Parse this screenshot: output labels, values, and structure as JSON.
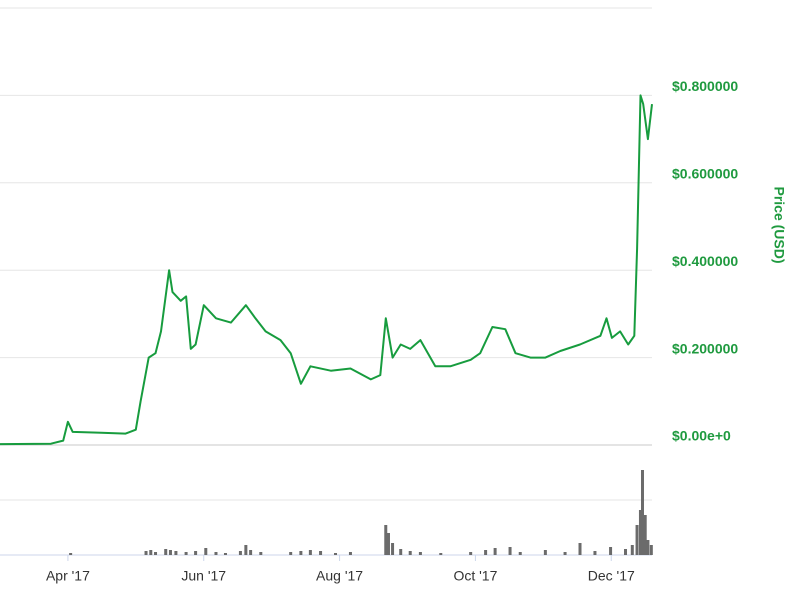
{
  "chart_data": {
    "type": "line",
    "y_axis_label": "Price (USD)",
    "color": "#179c3e",
    "x": [
      3.0,
      3.75,
      3.93,
      4.0,
      4.07,
      4.49,
      4.85,
      5.0,
      5.07,
      5.19,
      5.29,
      5.37,
      5.49,
      5.54,
      5.66,
      5.74,
      5.81,
      5.88,
      6.0,
      6.18,
      6.4,
      6.62,
      6.76,
      6.91,
      7.13,
      7.28,
      7.43,
      7.57,
      7.87,
      8.16,
      8.46,
      8.6,
      8.68,
      8.78,
      8.9,
      9.04,
      9.19,
      9.41,
      9.63,
      9.93,
      10.07,
      10.25,
      10.44,
      10.59,
      10.81,
      11.03,
      11.25,
      11.54,
      11.84,
      11.93,
      12.01,
      12.13,
      12.25,
      12.34,
      12.38,
      12.43,
      12.47,
      12.54,
      12.6
    ],
    "values": [
      0.002,
      0.003,
      0.01,
      0.053,
      0.03,
      0.028,
      0.026,
      0.035,
      0.1,
      0.2,
      0.21,
      0.26,
      0.4,
      0.35,
      0.33,
      0.34,
      0.22,
      0.23,
      0.32,
      0.29,
      0.28,
      0.32,
      0.29,
      0.26,
      0.24,
      0.21,
      0.14,
      0.18,
      0.17,
      0.175,
      0.15,
      0.16,
      0.29,
      0.2,
      0.23,
      0.22,
      0.24,
      0.18,
      0.18,
      0.195,
      0.21,
      0.27,
      0.265,
      0.21,
      0.2,
      0.2,
      0.215,
      0.23,
      0.25,
      0.29,
      0.245,
      0.26,
      0.23,
      0.25,
      0.45,
      0.8,
      0.78,
      0.7,
      0.78
    ],
    "xlim": [
      3.0,
      12.6
    ],
    "xticks": [
      {
        "value": 4,
        "label": "Apr '17"
      },
      {
        "value": 6,
        "label": "Jun '17"
      },
      {
        "value": 8,
        "label": "Aug '17"
      },
      {
        "value": 10,
        "label": "Oct '17"
      },
      {
        "value": 12,
        "label": "Dec '17"
      }
    ],
    "ylim": [
      0,
      1
    ],
    "yticks": [
      {
        "value": 0,
        "label": "$0.00e+0"
      },
      {
        "value": 0.2,
        "label": "$0.200000"
      },
      {
        "value": 0.4,
        "label": "$0.400000"
      },
      {
        "value": 0.6,
        "label": "$0.600000"
      },
      {
        "value": 0.8,
        "label": "$0.800000"
      }
    ],
    "grid": true,
    "volume": {
      "color": "#6b6b6b",
      "ylim": [
        0,
        100
      ],
      "x": [
        4.04,
        5.15,
        5.22,
        5.29,
        5.44,
        5.51,
        5.59,
        5.74,
        5.88,
        6.03,
        6.18,
        6.32,
        6.54,
        6.62,
        6.69,
        6.84,
        7.28,
        7.43,
        7.57,
        7.72,
        7.94,
        8.16,
        8.68,
        8.72,
        8.78,
        8.9,
        9.04,
        9.19,
        9.49,
        9.93,
        10.15,
        10.29,
        10.51,
        10.66,
        11.03,
        11.32,
        11.54,
        11.76,
        11.99,
        12.21,
        12.31,
        12.38,
        12.43,
        12.46,
        12.5,
        12.54,
        12.59
      ],
      "values": [
        2,
        4,
        5,
        3,
        6,
        5,
        4,
        3,
        4,
        7,
        3,
        2,
        4,
        10,
        5,
        3,
        3,
        4,
        5,
        4,
        2,
        3,
        30,
        22,
        12,
        6,
        4,
        3,
        2,
        3,
        5,
        7,
        8,
        3,
        5,
        3,
        12,
        4,
        8,
        6,
        10,
        30,
        45,
        85,
        40,
        15,
        10
      ]
    }
  }
}
